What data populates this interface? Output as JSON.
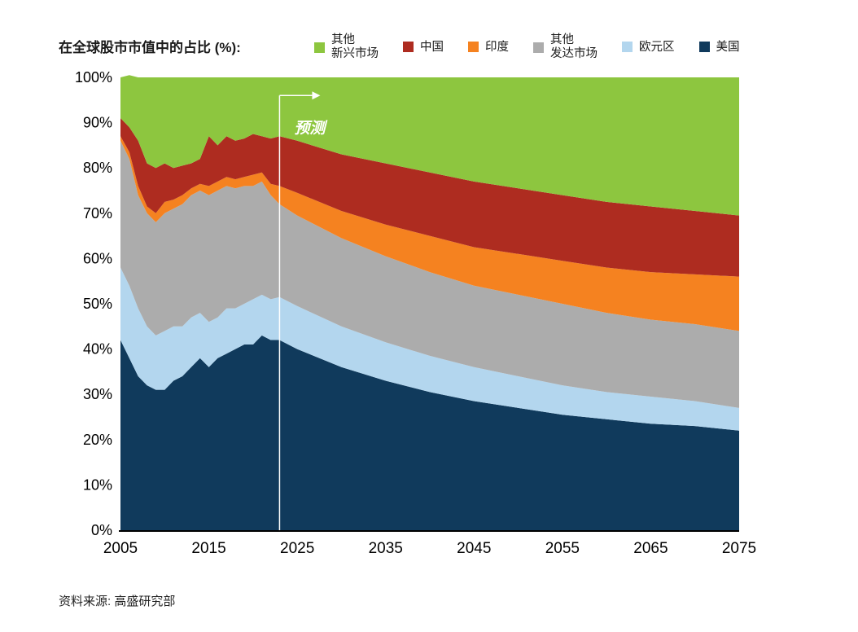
{
  "chart_data": {
    "type": "area",
    "stacked": true,
    "title": "在全球股市市值中的占比 (%):",
    "xlim": [
      2005,
      2075
    ],
    "ylim": [
      0,
      100
    ],
    "grid": false,
    "legend_position": "top",
    "x": [
      2005,
      2006,
      2007,
      2008,
      2009,
      2010,
      2011,
      2012,
      2013,
      2014,
      2015,
      2016,
      2017,
      2018,
      2019,
      2020,
      2021,
      2022,
      2023,
      2025,
      2030,
      2035,
      2040,
      2045,
      2050,
      2055,
      2060,
      2065,
      2070,
      2075
    ],
    "x_ticks": [
      "2005",
      "2015",
      "2025",
      "2035",
      "2045",
      "2055",
      "2065",
      "2075"
    ],
    "y_ticks": [
      "0%",
      "10%",
      "20%",
      "30%",
      "40%",
      "50%",
      "60%",
      "70%",
      "80%",
      "90%",
      "100%"
    ],
    "series": [
      {
        "name": "美国",
        "legend_label": "美国",
        "color": "#103a5c",
        "values": [
          42,
          38,
          34,
          32,
          31,
          31,
          33,
          34,
          36,
          38,
          36,
          38,
          39,
          40,
          41,
          41,
          43,
          42,
          42,
          40,
          36,
          33,
          30.5,
          28.5,
          27,
          25.5,
          24.5,
          23.5,
          23,
          22
        ]
      },
      {
        "name": "欧元区",
        "legend_label": "欧元区",
        "color": "#b3d6ee",
        "values": [
          16,
          16,
          15,
          13,
          12,
          13,
          12,
          11,
          11,
          10,
          10,
          9,
          10,
          9,
          9,
          10,
          9,
          9,
          9.5,
          9.5,
          9,
          8.5,
          8,
          7.5,
          7,
          6.5,
          6,
          6,
          5.5,
          5
        ]
      },
      {
        "name": "其他发达市场",
        "legend_label": "其他\n发达市场",
        "color": "#acacac",
        "values": [
          28,
          28,
          25,
          25,
          25,
          26,
          26,
          27,
          27,
          27,
          28,
          28,
          27,
          26.5,
          26,
          25,
          25,
          23,
          20.5,
          20,
          19.5,
          19,
          18.5,
          18,
          18,
          18,
          17.5,
          17,
          17,
          17
        ]
      },
      {
        "name": "印度",
        "legend_label": "印度",
        "color": "#f58220",
        "values": [
          1,
          1.5,
          2,
          1.5,
          2,
          2.5,
          2,
          2,
          1.5,
          1.5,
          2,
          2,
          2,
          2,
          2,
          2.5,
          2,
          2.5,
          4,
          5,
          6,
          7,
          8,
          8.5,
          9,
          9.5,
          10,
          10.5,
          11,
          12
        ]
      },
      {
        "name": "中国",
        "legend_label": "中国",
        "color": "#ae2c20",
        "values": [
          4,
          5.5,
          10,
          9.5,
          10,
          8.5,
          7,
          6.5,
          5.5,
          5.5,
          11,
          8,
          9,
          8.5,
          8.5,
          9,
          8,
          10,
          11,
          11.5,
          12.5,
          13.5,
          14,
          14.5,
          14.5,
          14.5,
          14.5,
          14.5,
          14,
          13.5
        ]
      },
      {
        "name": "其他新兴市场",
        "legend_label": "其他\n新兴市场",
        "color": "#8dc63f",
        "values": [
          9,
          11.5,
          14,
          19,
          20,
          19,
          20,
          19.5,
          19,
          18,
          13,
          15,
          13,
          14,
          13.5,
          12.5,
          13,
          13.5,
          13,
          14,
          17,
          19,
          21,
          23,
          24.5,
          26,
          27.5,
          28.5,
          29.5,
          30.5
        ]
      }
    ],
    "legend_order": [
      5,
      4,
      3,
      2,
      1,
      0
    ],
    "forecast": {
      "year": 2023,
      "label": "预测"
    }
  },
  "footer": {
    "source": "资料来源: 高盛研究部"
  }
}
